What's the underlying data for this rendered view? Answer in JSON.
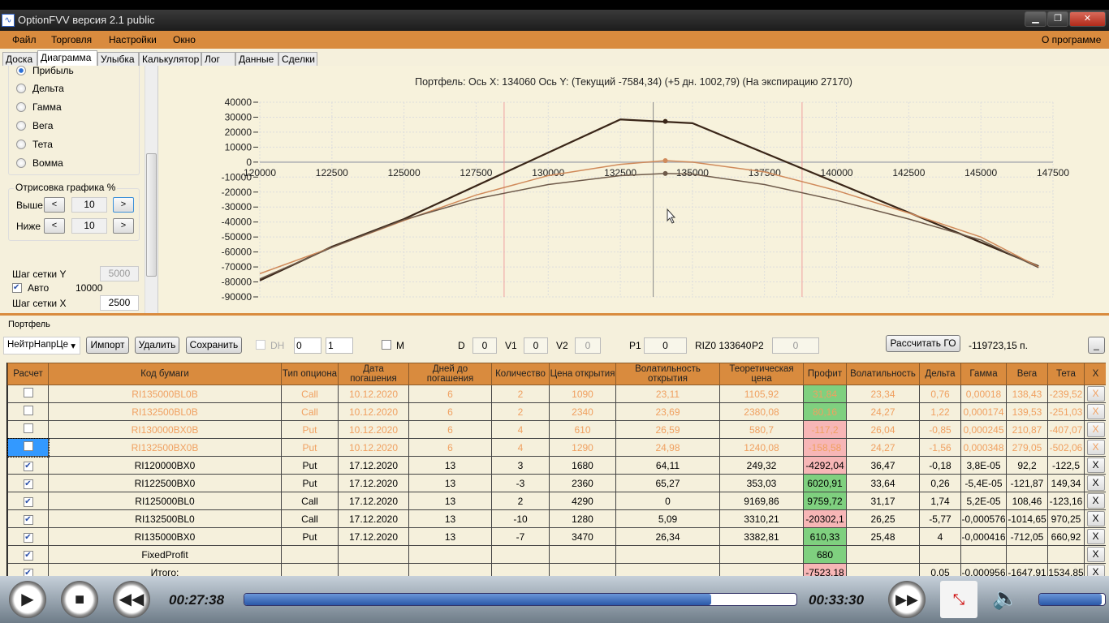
{
  "window": {
    "title": "OptionFVV версия 2.1 public",
    "min": "▁",
    "max": "❐",
    "close": "✕"
  },
  "menu": {
    "items": [
      "Файл",
      "Торговля",
      "Настройки",
      "Окно"
    ],
    "about": "О программе"
  },
  "tabs": [
    "Доска",
    "Диаграмма",
    "Улыбка",
    "Калькулятор",
    "Лог",
    "Данные",
    "Сделки"
  ],
  "active_tab": "Диаграмма",
  "left": {
    "radios": [
      {
        "label": "Прибыль",
        "checked": true
      },
      {
        "label": "Дельта"
      },
      {
        "label": "Гамма"
      },
      {
        "label": "Вега"
      },
      {
        "label": "Тета"
      },
      {
        "label": "Вомма"
      }
    ],
    "render_group": "Отрисовка графика %",
    "above_label": "Выше",
    "above_value": "10",
    "below_label": "Ниже",
    "below_value": "10",
    "prev": "<",
    "next": ">",
    "grid_y_label": "Шаг сетки Y",
    "grid_y_value": "5000",
    "auto_label": "Авто",
    "auto_checked": true,
    "auto_value": "10000",
    "grid_x_label": "Шаг сетки X",
    "grid_x_value": "2500"
  },
  "chart_data": {
    "type": "line",
    "title": "Портфель: Ось X: 134060 Ось Y:  (Текущий -7584,34)  (+5 дн. 1002,79)  (На экспирацию 27170)",
    "xlim": [
      120000,
      147500
    ],
    "ylim": [
      -90000,
      40000
    ],
    "xticks": [
      "120000",
      "122500",
      "125000",
      "127500",
      "130000",
      "132500",
      "135000",
      "137500",
      "140000",
      "142500",
      "145000",
      "147500"
    ],
    "yticks": [
      "40000",
      "30000",
      "20000",
      "10000",
      "0",
      "-10000",
      "-20000",
      "-30000",
      "-40000",
      "-50000",
      "-60000",
      "-70000",
      "-80000",
      "-90000"
    ],
    "grid": true,
    "vlines": [
      {
        "x": 128470,
        "color": "#f0a0a0"
      },
      {
        "x": 138800,
        "color": "#f0a0a0"
      },
      {
        "x": 133640,
        "color": "#888888"
      }
    ],
    "cursor_x": 134060,
    "series": [
      {
        "color": "#3a2618",
        "x": [
          120000,
          122500,
          125000,
          132500,
          135000,
          147000
        ],
        "y": [
          -79000,
          -56500,
          -38000,
          28500,
          26000,
          -69500
        ],
        "marker": 27170
      },
      {
        "color": "#d08a5a",
        "x": [
          120000,
          122500,
          125000,
          127500,
          130000,
          132500,
          134060,
          135000,
          137500,
          140000,
          142500,
          145000,
          147000
        ],
        "y": [
          -74500,
          -57000,
          -39000,
          -22000,
          -9000,
          -1500,
          1003,
          0,
          -6500,
          -19000,
          -34000,
          -50000,
          -70000
        ],
        "marker": 1002.79
      },
      {
        "color": "#6e5a4a",
        "x": [
          120000,
          122500,
          125000,
          127500,
          130000,
          132500,
          134060,
          135000,
          137500,
          140000,
          142500,
          145000,
          147000
        ],
        "y": [
          -78000,
          -57000,
          -38500,
          -24500,
          -15000,
          -9000,
          -7584,
          -8000,
          -15000,
          -25500,
          -38000,
          -52000,
          -70500
        ],
        "marker": -7584.34
      }
    ]
  },
  "portfolio": {
    "label": "Портфель",
    "strategy": "НейтрНапрЦе",
    "import": "Импорт",
    "delete": "Удалить",
    "save": "Сохранить",
    "dh": "DH",
    "spin1": "0",
    "spin2": "1",
    "m": "M",
    "d_label": "D",
    "d": "0",
    "v1_label": "V1",
    "v1": "0",
    "v2_label": "V2",
    "v2": "0",
    "p1_label": "P1",
    "p1": "0",
    "riz": "RIZ0 133640",
    "p2_label": "P2",
    "p2": "0",
    "calc": "Рассчитать ГО",
    "go_value": "-119723,15 п.",
    "collapse": "_"
  },
  "table": {
    "headers": [
      "Расчет",
      "Код бумаги",
      "Тип опциона",
      "Дата погашения",
      "Дней до погашения",
      "Количество",
      "Цена открытия",
      "Волатильность открытия",
      "Теоретическая цена",
      "Профит",
      "Волатильность",
      "Дельта",
      "Гамма",
      "Вега",
      "Тета",
      "X"
    ],
    "rows": [
      {
        "checked": false,
        "disabled": true,
        "cells": [
          "RI135000BL0B",
          "Call",
          "10.12.2020",
          "6",
          "2",
          "1090",
          "23,11",
          "1105,92",
          "31,84",
          "23,34",
          "0,76",
          "0,00018",
          "138,43",
          "-239,52"
        ],
        "profit": "g"
      },
      {
        "checked": false,
        "disabled": true,
        "cells": [
          "RI132500BL0B",
          "Call",
          "10.12.2020",
          "6",
          "2",
          "2340",
          "23,69",
          "2380,08",
          "80,16",
          "24,27",
          "1,22",
          "0,000174",
          "139,53",
          "-251,03"
        ],
        "profit": "g"
      },
      {
        "checked": false,
        "disabled": true,
        "cells": [
          "RI130000BX0B",
          "Put",
          "10.12.2020",
          "6",
          "4",
          "610",
          "26,59",
          "580,7",
          "-117,2",
          "26,04",
          "-0,85",
          "0,000245",
          "210,87",
          "-407,07"
        ],
        "profit": "r"
      },
      {
        "checked": false,
        "disabled": true,
        "selected": true,
        "cells": [
          "RI132500BX0B",
          "Put",
          "10.12.2020",
          "6",
          "4",
          "1290",
          "24,98",
          "1240,08",
          "-158,58",
          "24,27",
          "-1,56",
          "0,000348",
          "279,05",
          "-502,06"
        ],
        "profit": "r"
      },
      {
        "checked": true,
        "cells": [
          "RI120000BX0",
          "Put",
          "17.12.2020",
          "13",
          "3",
          "1680",
          "64,11",
          "249,32",
          "-4292,04",
          "36,47",
          "-0,18",
          "3,8E-05",
          "92,2",
          "-122,5"
        ],
        "profit": "r"
      },
      {
        "checked": true,
        "cells": [
          "RI122500BX0",
          "Put",
          "17.12.2020",
          "13",
          "-3",
          "2360",
          "65,27",
          "353,03",
          "6020,91",
          "33,64",
          "0,26",
          "-5,4E-05",
          "-121,87",
          "149,34"
        ],
        "profit": "g"
      },
      {
        "checked": true,
        "cells": [
          "RI125000BL0",
          "Call",
          "17.12.2020",
          "13",
          "2",
          "4290",
          "0",
          "9169,86",
          "9759,72",
          "31,17",
          "1,74",
          "5,2E-05",
          "108,46",
          "-123,16"
        ],
        "profit": "g"
      },
      {
        "checked": true,
        "cells": [
          "RI132500BL0",
          "Call",
          "17.12.2020",
          "13",
          "-10",
          "1280",
          "5,09",
          "3310,21",
          "-20302,1",
          "26,25",
          "-5,77",
          "-0,000576",
          "-1014,65",
          "970,25"
        ],
        "profit": "r"
      },
      {
        "checked": true,
        "cells": [
          "RI135000BX0",
          "Put",
          "17.12.2020",
          "13",
          "-7",
          "3470",
          "26,34",
          "3382,81",
          "610,33",
          "25,48",
          "4",
          "-0,000416",
          "-712,05",
          "660,92"
        ],
        "profit": "g"
      },
      {
        "checked": true,
        "cells": [
          "FixedProfit",
          "",
          "",
          "",
          "",
          "",
          "",
          "",
          "680",
          "",
          "",
          "",
          "",
          ""
        ],
        "profit": "g"
      },
      {
        "checked": true,
        "cells": [
          "Итого:",
          "",
          "",
          "",
          "",
          "",
          "",
          "",
          "-7523,18",
          "",
          "0,05",
          "-0,000956",
          "-1647,91",
          "1534,85"
        ],
        "profit": "r"
      }
    ],
    "delete_label": "X"
  },
  "player": {
    "elapsed": "00:27:38",
    "total": "00:33:30",
    "progress": 0.845,
    "volume": 0.95
  }
}
